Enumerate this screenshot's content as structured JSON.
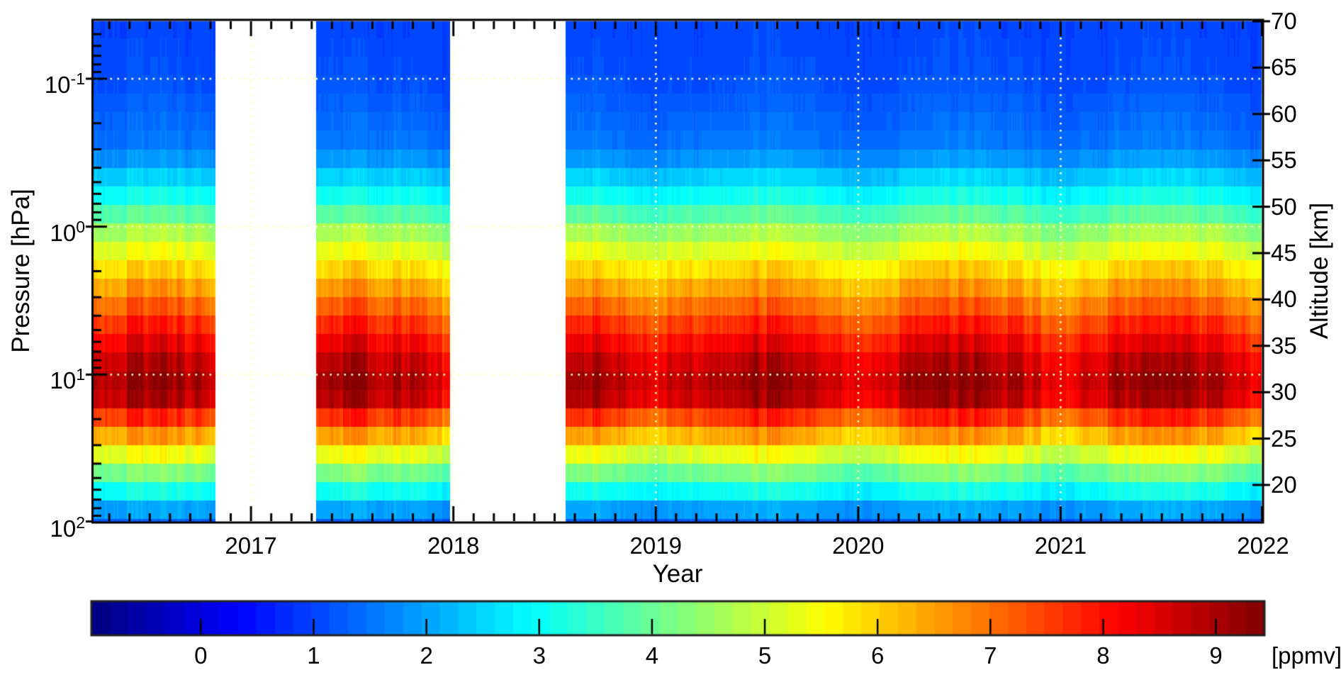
{
  "axes": {
    "x": {
      "label": "Year",
      "tick_labels": [
        "2017",
        "2018",
        "2019",
        "2020",
        "2021",
        "2022"
      ],
      "tick_values": [
        2017,
        2018,
        2019,
        2020,
        2021,
        2022
      ],
      "minor_tick_interval_years": 0.1
    },
    "pressure": {
      "label": "Pressure [hPa]",
      "scale": "log",
      "ticks": [
        {
          "mantissa": "10",
          "exponent": "-1",
          "hPa": 0.1
        },
        {
          "mantissa": "10",
          "exponent": "0",
          "hPa": 1
        },
        {
          "mantissa": "10",
          "exponent": "1",
          "hPa": 10
        },
        {
          "mantissa": "10",
          "exponent": "2",
          "hPa": 100
        }
      ]
    },
    "altitude": {
      "label": "Altitude [km]",
      "tick_labels": [
        "70",
        "65",
        "60",
        "55",
        "50",
        "45",
        "40",
        "35",
        "30",
        "25",
        "20"
      ],
      "tick_values": [
        70,
        65,
        60,
        55,
        50,
        45,
        40,
        35,
        30,
        25,
        20
      ]
    },
    "colorbar": {
      "unit": "[ppmv]",
      "tick_labels": [
        "0",
        "1",
        "2",
        "3",
        "4",
        "5",
        "6",
        "7",
        "8",
        "9"
      ],
      "tick_values": [
        0,
        1,
        2,
        3,
        4,
        5,
        6,
        7,
        8,
        9
      ],
      "colormap": "jet",
      "n_colors": 64,
      "value_range": [
        -0.97,
        9.43
      ]
    }
  },
  "chart_data": {
    "type": "heatmap",
    "xlabel": "Year",
    "ylabel_left": "Pressure [hPa]",
    "ylabel_right": "Altitude [km]",
    "colorbar_label": "[ppmv]",
    "units": "ppmv",
    "colormap": "jet",
    "color_range": [
      -0.97,
      9.43
    ],
    "x_range": [
      2016.217,
      2022.0
    ],
    "pressure_range_hPa": [
      0.04,
      100
    ],
    "data_gaps_years": [
      [
        2016.825,
        2017.322
      ],
      [
        2017.984,
        2018.555
      ]
    ],
    "grid": {
      "x_gridlines_years": [
        2017,
        2018,
        2019,
        2020,
        2021
      ],
      "y_gridlines_hPa": [
        0.1,
        1,
        10
      ],
      "style": "dotted"
    },
    "x_years": [
      2016.25,
      2016.5,
      2016.75,
      2017.0,
      2017.25,
      2017.5,
      2017.75,
      2018.0,
      2018.25,
      2018.5,
      2018.75,
      2019.0,
      2019.25,
      2019.5,
      2019.75,
      2020.0,
      2020.25,
      2020.5,
      2020.75,
      2021.0,
      2021.25,
      2021.5,
      2021.75,
      2022.0
    ],
    "y_pressure_hPa": [
      0.04,
      0.1,
      0.3,
      0.7,
      1,
      2,
      3,
      5,
      10,
      15,
      20,
      50,
      100
    ],
    "values_ppmv": [
      [
        1.0,
        1.0,
        1.0,
        1.0,
        1.0,
        1.0,
        1.0,
        1.0,
        1.0,
        1.0,
        1.0,
        1.0,
        1.0,
        1.1,
        1.0,
        1.0,
        1.0,
        1.1,
        1.0,
        1.0,
        1.0,
        1.1,
        1.0,
        1.0
      ],
      [
        1.1,
        1.2,
        1.1,
        1.0,
        1.1,
        1.2,
        1.1,
        1.0,
        1.1,
        1.2,
        1.2,
        1.0,
        1.1,
        1.2,
        1.2,
        1.0,
        1.1,
        1.2,
        1.2,
        1.0,
        1.1,
        1.2,
        1.1,
        1.0
      ],
      [
        1.5,
        1.6,
        1.6,
        1.4,
        1.5,
        1.6,
        1.6,
        1.4,
        1.5,
        1.6,
        1.6,
        1.4,
        1.6,
        1.7,
        1.6,
        1.4,
        1.5,
        1.7,
        1.6,
        1.4,
        1.6,
        1.7,
        1.6,
        1.4
      ],
      [
        3.3,
        3.4,
        3.3,
        3.0,
        3.2,
        3.4,
        3.3,
        3.0,
        3.1,
        3.4,
        3.4,
        3.0,
        3.3,
        3.5,
        3.4,
        3.0,
        3.3,
        3.5,
        3.4,
        3.0,
        3.3,
        3.5,
        3.3,
        3.0
      ],
      [
        4.4,
        4.6,
        4.5,
        4.0,
        4.2,
        4.6,
        4.4,
        4.1,
        4.2,
        4.5,
        4.5,
        4.1,
        4.4,
        4.6,
        4.5,
        4.1,
        4.4,
        4.6,
        4.5,
        4.0,
        4.4,
        4.6,
        4.5,
        4.1
      ],
      [
        5.9,
        6.1,
        6.0,
        5.5,
        5.7,
        6.1,
        5.9,
        5.5,
        5.7,
        6.0,
        6.0,
        5.6,
        5.9,
        6.2,
        6.0,
        5.5,
        5.9,
        6.2,
        6.0,
        5.5,
        5.9,
        6.2,
        6.0,
        5.6
      ],
      [
        6.7,
        7.0,
        6.8,
        6.2,
        6.5,
        7.0,
        6.8,
        6.3,
        6.5,
        6.8,
        6.9,
        6.3,
        6.8,
        7.0,
        6.8,
        6.3,
        6.7,
        7.0,
        6.9,
        6.2,
        6.8,
        7.0,
        6.8,
        6.3
      ],
      [
        7.8,
        8.1,
        7.9,
        7.2,
        7.5,
        8.1,
        7.8,
        7.2,
        7.5,
        7.9,
        8.0,
        7.3,
        7.8,
        8.1,
        7.9,
        7.2,
        7.8,
        8.1,
        8.0,
        7.2,
        7.8,
        8.1,
        7.9,
        7.3
      ],
      [
        9.0,
        9.3,
        9.1,
        8.3,
        8.7,
        9.3,
        9.0,
        8.4,
        8.6,
        9.1,
        9.2,
        8.4,
        9.0,
        9.4,
        9.1,
        8.4,
        9.0,
        9.4,
        9.2,
        8.3,
        9.0,
        9.4,
        9.1,
        8.4
      ],
      [
        8.7,
        9.0,
        8.8,
        8.0,
        8.4,
        9.0,
        8.7,
        8.0,
        8.3,
        8.9,
        8.9,
        8.1,
        8.7,
        9.1,
        8.9,
        8.0,
        8.7,
        9.1,
        8.9,
        8.0,
        8.7,
        9.1,
        8.8,
        8.1
      ],
      [
        7.4,
        7.7,
        7.5,
        6.7,
        7.1,
        7.7,
        7.4,
        6.8,
        7.0,
        7.5,
        7.6,
        6.8,
        7.4,
        7.8,
        7.5,
        6.8,
        7.4,
        7.8,
        7.6,
        6.7,
        7.4,
        7.8,
        7.5,
        6.8
      ],
      [
        3.8,
        4.0,
        3.9,
        3.4,
        3.6,
        4.0,
        3.8,
        3.5,
        3.6,
        3.9,
        3.9,
        3.5,
        3.8,
        4.0,
        3.9,
        3.4,
        3.8,
        4.0,
        3.9,
        3.4,
        3.8,
        4.0,
        3.9,
        3.5
      ],
      [
        1.2,
        1.3,
        1.3,
        1.1,
        1.2,
        1.3,
        1.3,
        1.1,
        1.2,
        1.3,
        1.3,
        1.1,
        1.3,
        1.4,
        1.3,
        1.1,
        1.2,
        1.4,
        1.3,
        1.1,
        1.3,
        1.4,
        1.3,
        1.1
      ]
    ]
  },
  "colors": {
    "background": "#ffffff",
    "frame": "#000000",
    "gridline_dots": "#ffffbe",
    "colorbar_border": "#222222"
  }
}
